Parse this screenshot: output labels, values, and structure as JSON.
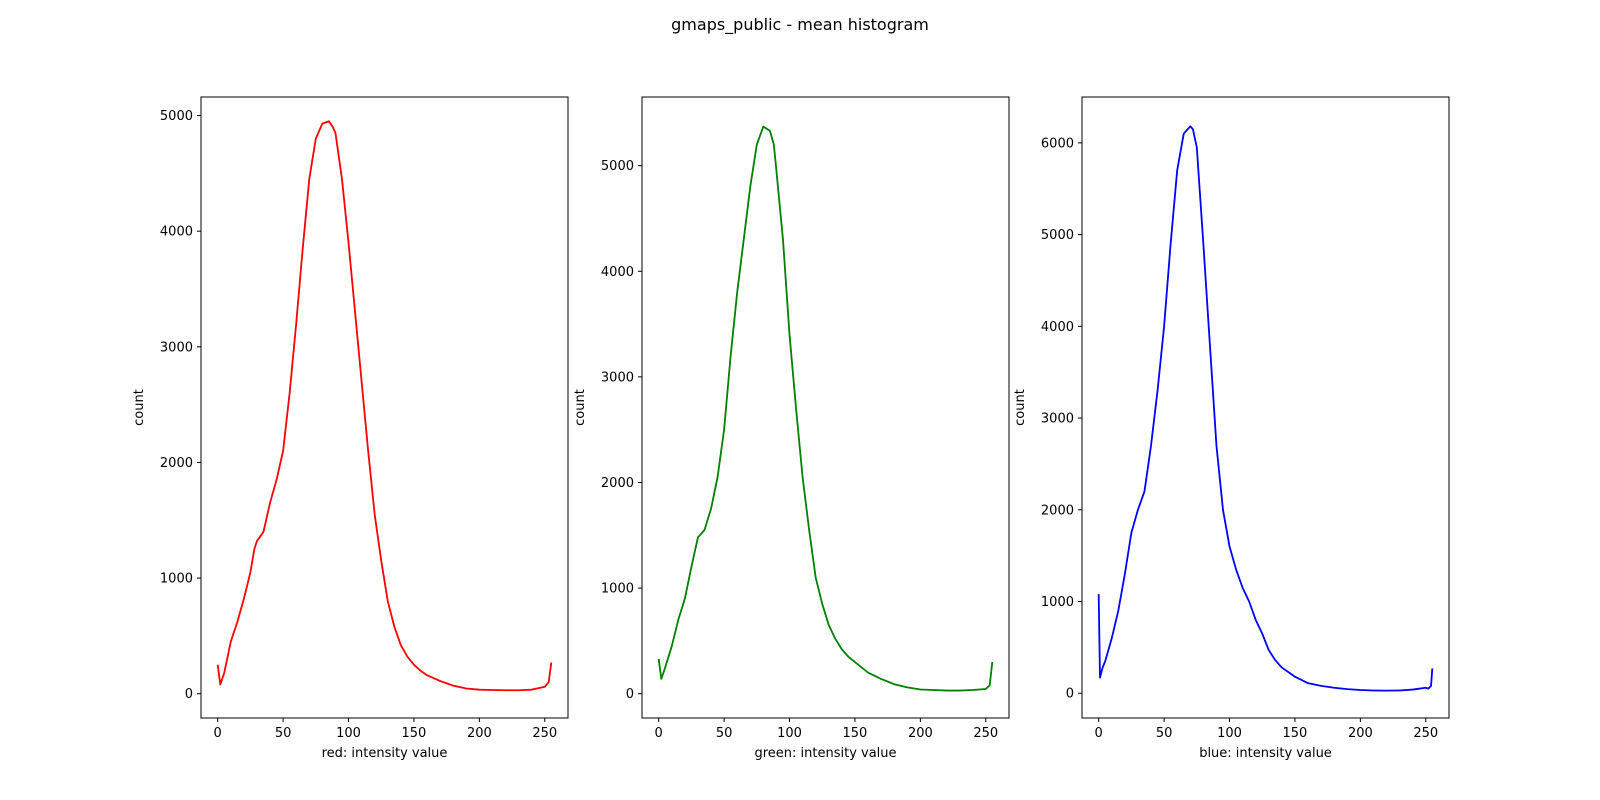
{
  "figure": {
    "title": "gmaps_public - mean histogram"
  },
  "chart_data": [
    {
      "type": "line",
      "title": "",
      "xlabel": "red: intensity value",
      "ylabel": "count",
      "color": "#ff0000",
      "xlim": [
        -12.75,
        267.75
      ],
      "ylim": [
        -210,
        5160
      ],
      "xticks": [
        0,
        50,
        100,
        150,
        200,
        250
      ],
      "yticks": [
        0,
        1000,
        2000,
        3000,
        4000,
        5000
      ],
      "grid": false,
      "legend": "none",
      "x": [
        0,
        2,
        5,
        10,
        15,
        20,
        25,
        28,
        30,
        35,
        40,
        45,
        50,
        55,
        60,
        65,
        70,
        75,
        80,
        85,
        88,
        90,
        95,
        100,
        105,
        110,
        115,
        120,
        125,
        130,
        135,
        140,
        145,
        150,
        155,
        160,
        170,
        180,
        190,
        200,
        210,
        220,
        230,
        240,
        250,
        253,
        255
      ],
      "values": [
        250,
        80,
        180,
        450,
        620,
        820,
        1050,
        1250,
        1320,
        1400,
        1650,
        1850,
        2100,
        2600,
        3200,
        3850,
        4450,
        4800,
        4930,
        4950,
        4900,
        4850,
        4450,
        3900,
        3300,
        2700,
        2100,
        1550,
        1150,
        800,
        580,
        420,
        320,
        250,
        200,
        160,
        110,
        70,
        45,
        35,
        32,
        30,
        30,
        35,
        60,
        100,
        270
      ]
    },
    {
      "type": "line",
      "title": "",
      "xlabel": "green: intensity value",
      "ylabel": "count",
      "color": "#008000",
      "xlim": [
        -12.75,
        267.75
      ],
      "ylim": [
        -230,
        5650
      ],
      "xticks": [
        0,
        50,
        100,
        150,
        200,
        250
      ],
      "yticks": [
        0,
        1000,
        2000,
        3000,
        4000,
        5000
      ],
      "grid": false,
      "legend": "none",
      "x": [
        0,
        2,
        5,
        10,
        15,
        20,
        25,
        30,
        35,
        40,
        45,
        50,
        55,
        60,
        65,
        70,
        75,
        80,
        85,
        88,
        90,
        95,
        100,
        105,
        110,
        115,
        120,
        125,
        130,
        135,
        140,
        145,
        150,
        155,
        160,
        170,
        180,
        190,
        200,
        210,
        220,
        230,
        240,
        250,
        253,
        255
      ],
      "values": [
        330,
        140,
        250,
        450,
        700,
        900,
        1200,
        1480,
        1550,
        1750,
        2050,
        2500,
        3200,
        3800,
        4300,
        4800,
        5200,
        5370,
        5330,
        5200,
        4950,
        4300,
        3400,
        2700,
        2050,
        1550,
        1100,
        850,
        650,
        520,
        420,
        350,
        300,
        250,
        200,
        140,
        90,
        60,
        40,
        35,
        30,
        30,
        35,
        45,
        80,
        300
      ]
    },
    {
      "type": "line",
      "title": "",
      "xlabel": "blue: intensity value",
      "ylabel": "count",
      "color": "#0000ff",
      "xlim": [
        -12.75,
        267.75
      ],
      "ylim": [
        -270,
        6500
      ],
      "xticks": [
        0,
        50,
        100,
        150,
        200,
        250
      ],
      "yticks": [
        0,
        1000,
        2000,
        3000,
        4000,
        5000,
        6000
      ],
      "grid": false,
      "legend": "none",
      "x": [
        0,
        1,
        3,
        5,
        10,
        15,
        20,
        25,
        30,
        35,
        40,
        45,
        50,
        55,
        60,
        65,
        70,
        72,
        75,
        80,
        85,
        90,
        95,
        100,
        105,
        110,
        115,
        120,
        125,
        130,
        135,
        140,
        145,
        150,
        160,
        170,
        180,
        190,
        200,
        210,
        220,
        230,
        240,
        250,
        252,
        254,
        255
      ],
      "values": [
        1080,
        170,
        280,
        350,
        600,
        900,
        1300,
        1750,
        2000,
        2200,
        2700,
        3300,
        4000,
        4900,
        5700,
        6100,
        6180,
        6150,
        5950,
        4900,
        3800,
        2700,
        2000,
        1600,
        1350,
        1150,
        1000,
        800,
        650,
        470,
        360,
        280,
        230,
        180,
        110,
        80,
        60,
        45,
        35,
        30,
        28,
        30,
        40,
        60,
        50,
        80,
        270
      ]
    }
  ]
}
